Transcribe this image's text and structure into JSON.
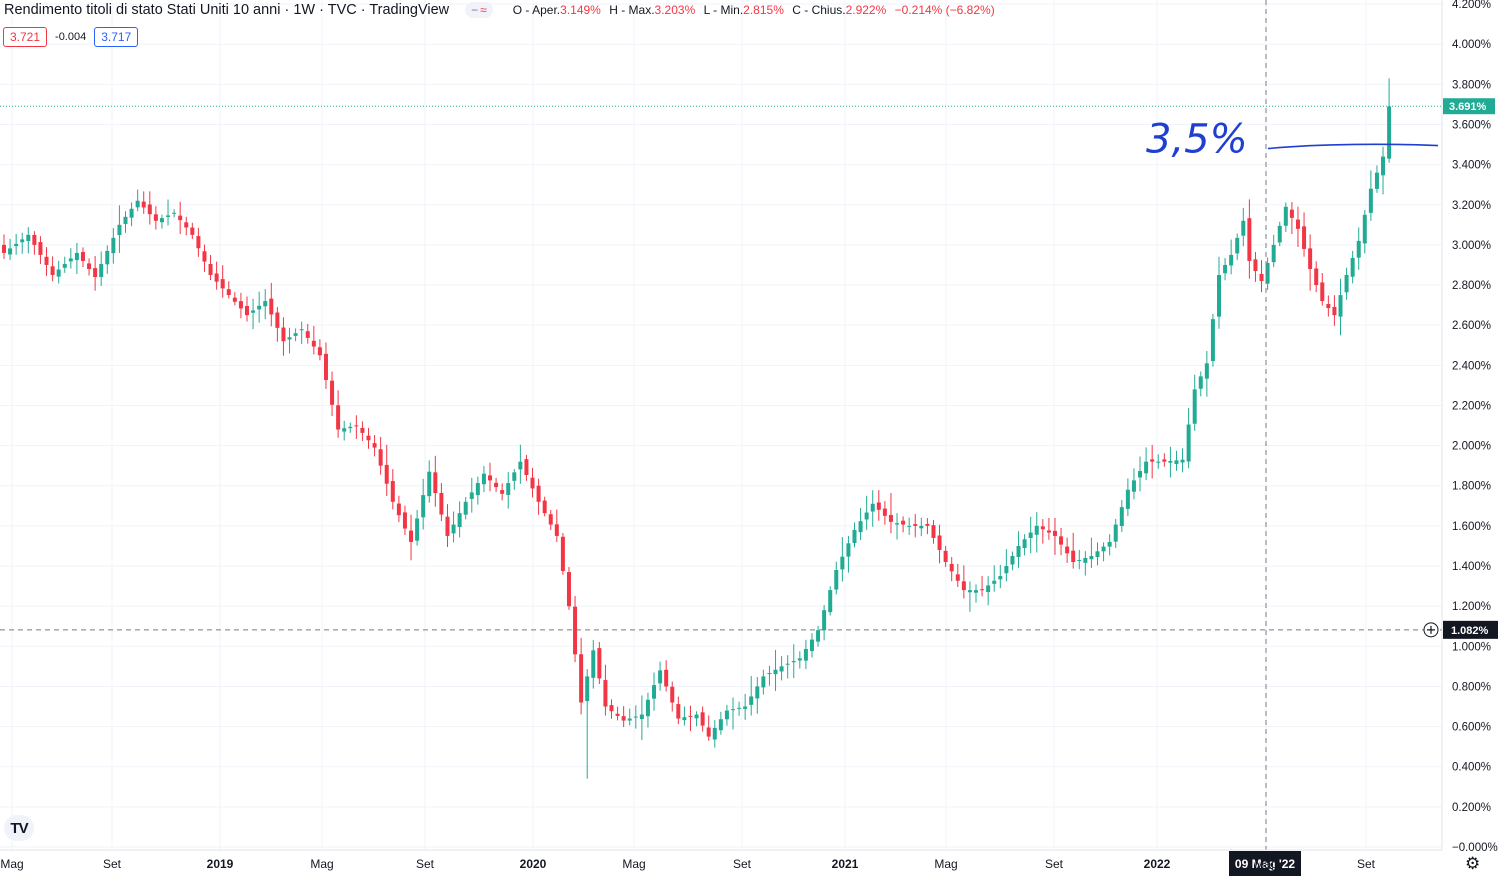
{
  "header": {
    "title": "Rendimento titoli di stato Stati Uniti 10 anni · 1W · TVC · TradingView",
    "icon_minus": "−",
    "icon_wave": "≈",
    "ohlc": [
      {
        "label": "O",
        "name": "Aper.",
        "value": "3.149%"
      },
      {
        "label": "H",
        "name": "Max.",
        "value": "3.203%"
      },
      {
        "label": "L",
        "name": "Min.",
        "value": "2.815%"
      },
      {
        "label": "C",
        "name": "Chius.",
        "value": "2.922%"
      }
    ],
    "change": "−0.214% (−6.82%)"
  },
  "quote": {
    "sell": "3.721",
    "spread": "-0.004",
    "buy": "3.717"
  },
  "annotation": {
    "text": "3,5%",
    "level": 3.49
  },
  "crosshair": {
    "date_label": "09 Mag '22",
    "price_label": "1.082%",
    "price": 1.082
  },
  "colors": {
    "up": "#22ab94",
    "down": "#f23645",
    "annotation": "#1e3fcf",
    "last_price": "#22ab94",
    "crosshair_label": "#131722"
  },
  "icons": {
    "logo": "tradingview-logo-icon",
    "settings": "gear-icon",
    "crosshair_plus": "plus-circle-icon"
  },
  "logo_text": "TV",
  "chart_data": {
    "type": "candlestick",
    "interval": "1W",
    "last_price": 3.691,
    "last_price_label": "3.691%",
    "y_ticks": [
      "4.200%",
      "4.000%",
      "3.800%",
      "3.600%",
      "3.400%",
      "3.200%",
      "3.000%",
      "2.800%",
      "2.600%",
      "2.400%",
      "2.200%",
      "2.000%",
      "1.800%",
      "1.600%",
      "1.400%",
      "1.200%",
      "1.000%",
      "0.800%",
      "0.600%",
      "0.400%",
      "0.200%",
      "−0.000%"
    ],
    "x_ticks": [
      "Mag",
      "Set",
      "2019",
      "Mag",
      "Set",
      "2020",
      "Mag",
      "Set",
      "2021",
      "Mag",
      "Set",
      "2022",
      "Mag",
      "Set"
    ],
    "x_tick_bold": [
      false,
      false,
      true,
      false,
      false,
      true,
      false,
      false,
      true,
      false,
      false,
      true,
      false,
      false
    ],
    "anchors": [
      [
        0,
        2.96
      ],
      [
        4,
        3.05
      ],
      [
        8,
        2.85
      ],
      [
        12,
        2.96
      ],
      [
        15,
        2.84
      ],
      [
        19,
        3.1
      ],
      [
        22,
        3.22
      ],
      [
        25,
        3.12
      ],
      [
        28,
        3.16
      ],
      [
        31,
        3.05
      ],
      [
        34,
        2.85
      ],
      [
        37,
        2.75
      ],
      [
        40,
        2.65
      ],
      [
        43,
        2.72
      ],
      [
        46,
        2.52
      ],
      [
        49,
        2.58
      ],
      [
        52,
        2.45
      ],
      [
        55,
        2.08
      ],
      [
        58,
        2.1
      ],
      [
        61,
        1.99
      ],
      [
        64,
        1.72
      ],
      [
        67,
        1.52
      ],
      [
        70,
        1.87
      ],
      [
        73,
        1.55
      ],
      [
        76,
        1.72
      ],
      [
        79,
        1.86
      ],
      [
        82,
        1.76
      ],
      [
        85,
        1.92
      ],
      [
        88,
        1.72
      ],
      [
        91,
        1.55
      ],
      [
        93,
        1.2
      ],
      [
        95,
        0.72
      ],
      [
        97,
        0.98
      ],
      [
        99,
        0.7
      ],
      [
        102,
        0.63
      ],
      [
        105,
        0.66
      ],
      [
        108,
        0.88
      ],
      [
        111,
        0.64
      ],
      [
        114,
        0.66
      ],
      [
        116,
        0.55
      ],
      [
        119,
        0.68
      ],
      [
        122,
        0.7
      ],
      [
        125,
        0.85
      ],
      [
        128,
        0.9
      ],
      [
        131,
        0.94
      ],
      [
        134,
        1.08
      ],
      [
        137,
        1.38
      ],
      [
        140,
        1.58
      ],
      [
        143,
        1.71
      ],
      [
        146,
        1.62
      ],
      [
        149,
        1.6
      ],
      [
        152,
        1.6
      ],
      [
        155,
        1.42
      ],
      [
        158,
        1.28
      ],
      [
        161,
        1.28
      ],
      [
        164,
        1.35
      ],
      [
        167,
        1.5
      ],
      [
        170,
        1.6
      ],
      [
        173,
        1.55
      ],
      [
        176,
        1.42
      ],
      [
        179,
        1.45
      ],
      [
        182,
        1.52
      ],
      [
        185,
        1.78
      ],
      [
        188,
        1.92
      ],
      [
        191,
        1.92
      ],
      [
        194,
        1.93
      ],
      [
        196,
        2.28
      ],
      [
        198,
        2.41
      ],
      [
        200,
        2.85
      ],
      [
        202,
        2.95
      ],
      [
        204,
        3.12
      ],
      [
        205,
        2.92
      ],
      [
        207,
        2.82
      ],
      [
        209,
        3.0
      ],
      [
        211,
        3.19
      ],
      [
        213,
        3.08
      ],
      [
        215,
        2.88
      ],
      [
        217,
        2.72
      ],
      [
        219,
        2.65
      ],
      [
        221,
        2.85
      ],
      [
        223,
        3.02
      ],
      [
        225,
        3.28
      ],
      [
        227,
        3.44
      ],
      [
        228,
        3.69
      ]
    ],
    "range_low": 0.34,
    "range_high": 3.83
  }
}
